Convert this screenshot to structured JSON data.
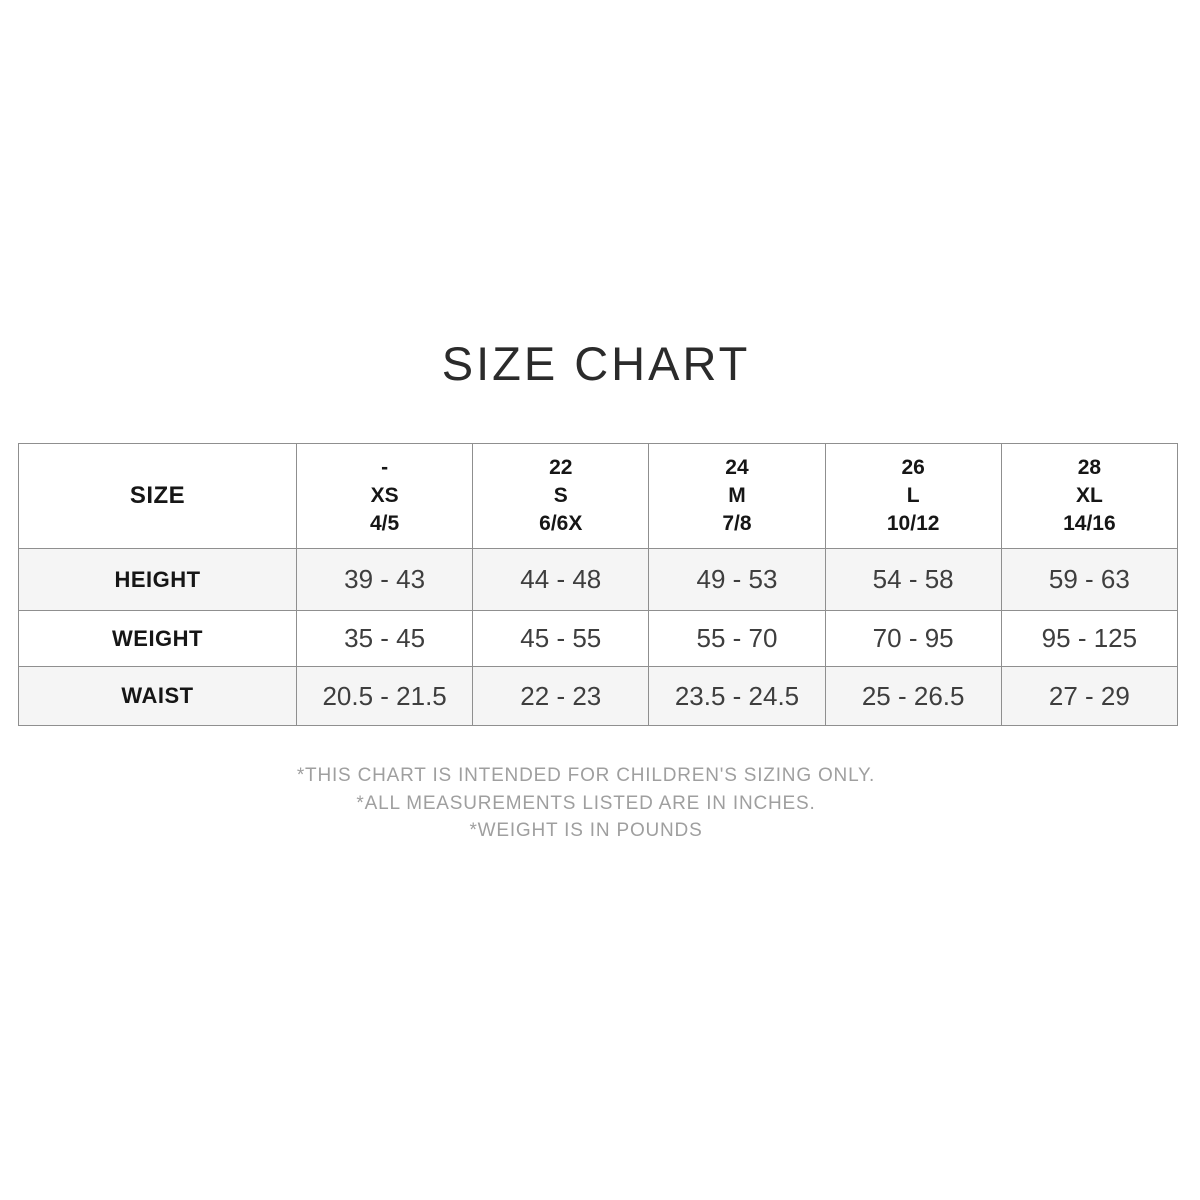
{
  "title": "SIZE CHART",
  "chart_data": {
    "type": "table",
    "title": "SIZE CHART",
    "corner_header": "SIZE",
    "size_columns": [
      {
        "number": "-",
        "letter": "XS",
        "kids_size": "4/5"
      },
      {
        "number": "22",
        "letter": "S",
        "kids_size": "6/6X"
      },
      {
        "number": "24",
        "letter": "M",
        "kids_size": "7/8"
      },
      {
        "number": "26",
        "letter": "L",
        "kids_size": "10/12"
      },
      {
        "number": "28",
        "letter": "XL",
        "kids_size": "14/16"
      }
    ],
    "measurement_rows": [
      {
        "label": "HEIGHT",
        "values": [
          "39 - 43",
          "44 - 48",
          "49 - 53",
          "54 - 58",
          "59 - 63"
        ]
      },
      {
        "label": "WEIGHT",
        "values": [
          "35 - 45",
          "45 - 55",
          "55 - 70",
          "70 - 95",
          "95 - 125"
        ]
      },
      {
        "label": "WAIST",
        "values": [
          "20.5 - 21.5",
          "22 - 23",
          "23.5 - 24.5",
          "25 - 26.5",
          "27 - 29"
        ]
      }
    ]
  },
  "footnotes": [
    "*THIS CHART IS INTENDED FOR CHILDREN'S SIZING ONLY.",
    "*ALL MEASUREMENTS LISTED ARE IN INCHES.",
    "*WEIGHT IS IN POUNDS"
  ],
  "colors": {
    "background": "#ffffff",
    "table_border": "#8f8f8f",
    "banded_row_bg": "#f5f5f5",
    "header_text": "#161616",
    "value_text": "#3e3e3e",
    "footnote_text": "#9f9f9f",
    "title_text": "#2b2b2b"
  }
}
